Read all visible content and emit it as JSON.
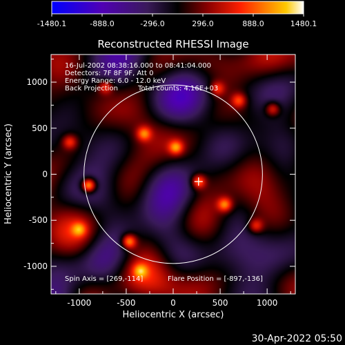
{
  "chart_data": {
    "type": "heatmap",
    "title": "Reconstructed RHESSI Image",
    "xlabel": "Heliocentric X (arcsec)",
    "ylabel": "Heliocentric Y (arcsec)",
    "xlim": [
      -1300,
      1300
    ],
    "ylim": [
      -1300,
      1300
    ],
    "x_ticks": [
      -1000,
      -500,
      0,
      500,
      1000
    ],
    "y_ticks": [
      -1000,
      -500,
      0,
      500,
      1000
    ],
    "colorbar": {
      "range": [
        -1480.1,
        1480.1
      ],
      "tick_labels": [
        "-1480.1",
        "-888.0",
        "-296.0",
        "296.0",
        "888.0",
        "1480.1"
      ],
      "stops": [
        "#0000ff",
        "#5000b4",
        "#3a1a5a",
        "#000000",
        "#8a0000",
        "#ff2000",
        "#ff8000",
        "#ffc800",
        "#ffffff"
      ]
    },
    "solar_disk": {
      "center": [
        0,
        0
      ],
      "radius": 950
    },
    "flare_marker": [
      270,
      -80
    ],
    "annotations": {
      "time": "16-Jul-2002 08:38:16.000 to 08:41:04.000",
      "detectors": "Detectors: 7F 8F 9F, Att 0",
      "energy": "Energy Range: 6.0 - 12.0 keV",
      "method": "Back Projection",
      "counts": "Total counts: 4.16E+03",
      "spin_axis": "Spin Axis = [269,-114]",
      "flare_position": "Flare Position = [-897,-136]"
    },
    "bright_sources": [
      {
        "x": -900,
        "y": -120,
        "v": 1480
      },
      {
        "x": -470,
        "y": -730,
        "v": 1150
      },
      {
        "x": 270,
        "y": -80,
        "v": 1000
      },
      {
        "x": 550,
        "y": -330,
        "v": 950
      },
      {
        "x": 30,
        "y": 290,
        "v": 900
      },
      {
        "x": -310,
        "y": 440,
        "v": 850
      },
      {
        "x": 1060,
        "y": 710,
        "v": 800
      },
      {
        "x": -720,
        "y": 950,
        "v": 780
      },
      {
        "x": 700,
        "y": 800,
        "v": 760
      },
      {
        "x": -1100,
        "y": 350,
        "v": 740
      },
      {
        "x": 470,
        "y": 930,
        "v": 700
      },
      {
        "x": -350,
        "y": -1050,
        "v": 700
      },
      {
        "x": 880,
        "y": -560,
        "v": 720
      },
      {
        "x": -1000,
        "y": -600,
        "v": 680
      }
    ]
  },
  "footer": {
    "timestamp": "30-Apr-2022 05:50"
  }
}
